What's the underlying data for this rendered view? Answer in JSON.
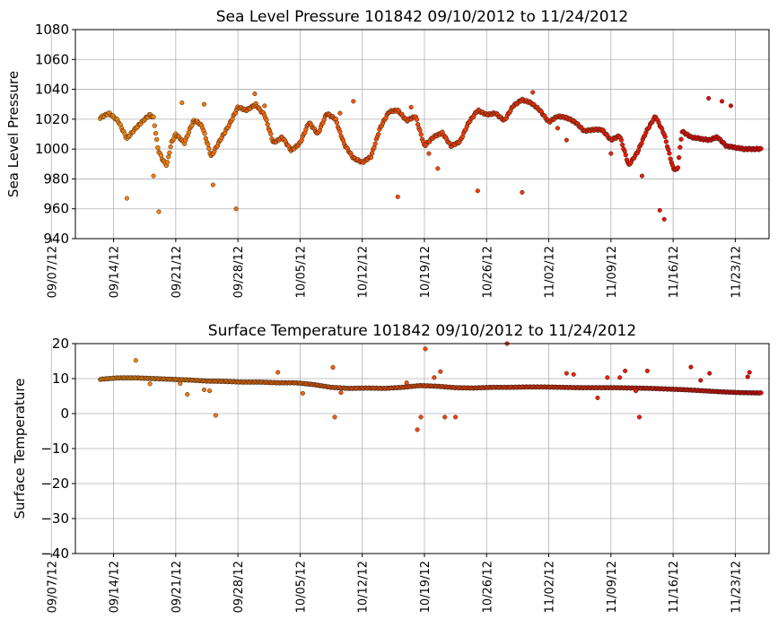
{
  "chart_data": [
    {
      "type": "scatter",
      "title": "Sea Level Pressure 101842  09/10/2012 to 11/24/2012",
      "xlabel": "",
      "ylabel": "Sea Level Pressure",
      "ylim": [
        940,
        1080
      ],
      "yticks": [
        940,
        960,
        980,
        1000,
        1020,
        1040,
        1060,
        1080
      ],
      "xlim_days": [
        -0.3,
        77.8
      ],
      "xtick_labels": [
        "09/07/12",
        "09/14/12",
        "09/21/12",
        "09/28/12",
        "10/05/12",
        "10/12/12",
        "10/19/12",
        "10/26/12",
        "11/02/12",
        "11/09/12",
        "11/16/12",
        "11/23/12"
      ],
      "x_start": "09/10/2012",
      "grid": true,
      "color_gradient": [
        "#ff8c00",
        "#ff4500",
        "#e60000"
      ],
      "series": [
        {
          "name": "Sea Level Pressure",
          "x": [
            2.5,
            3.5,
            4.5,
            5.5,
            6.5,
            7.5,
            8.1,
            8.5,
            9,
            9.5,
            10,
            10.5,
            11,
            12,
            12.5,
            13,
            13.5,
            14,
            14.5,
            15,
            16,
            17,
            18,
            19,
            20,
            20.5,
            21,
            22,
            23,
            24,
            25,
            26,
            27,
            28,
            29,
            29.5,
            30,
            31,
            32,
            33,
            34,
            35,
            36,
            37,
            38,
            39,
            40,
            41,
            42,
            43,
            44,
            45,
            46,
            47,
            48,
            49,
            50,
            51,
            52,
            53,
            54,
            55,
            56,
            57,
            58,
            59,
            60,
            61,
            62,
            63,
            64,
            65,
            66,
            67,
            67.5,
            68,
            69,
            70,
            71,
            72,
            73,
            74,
            75,
            76,
            77
          ],
          "y": [
            1021,
            1024,
            1019,
            1007,
            1014,
            1020,
            1023,
            1021,
            1000,
            993,
            989,
            1004,
            1010,
            1004,
            1012,
            1019,
            1018,
            1015,
            1005,
            995,
            1006,
            1016,
            1028,
            1026,
            1030,
            1026,
            1023,
            1004,
            1008,
            999,
            1004,
            1018,
            1010,
            1024,
            1020,
            1011,
            1003,
            994,
            991,
            995,
            1014,
            1025,
            1026,
            1019,
            1022,
            1002,
            1008,
            1011,
            1002,
            1005,
            1018,
            1026,
            1023,
            1024,
            1019,
            1029,
            1033,
            1031,
            1026,
            1018,
            1022,
            1021,
            1018,
            1012,
            1013,
            1013,
            1006,
            1009,
            989,
            998,
            1012,
            1022,
            1010,
            987,
            986,
            1012,
            1008,
            1007,
            1006,
            1008,
            1002,
            1001,
            1000,
            1000,
            1000
          ],
          "outliers_x": [
            5.5,
            8.5,
            9.1,
            11.7,
            14.2,
            15.2,
            17.8,
            19.9,
            21,
            29.5,
            31,
            36,
            37.5,
            39.5,
            40.5,
            45,
            50,
            51.2,
            54,
            55,
            60,
            63.5,
            65.5,
            66,
            71,
            72.5,
            73.5
          ],
          "outliers_y": [
            967,
            982,
            958,
            1031,
            1030,
            976,
            960,
            1037,
            1029,
            1024,
            1032,
            968,
            1028,
            997,
            987,
            972,
            971,
            1038,
            1014,
            1006,
            997,
            982,
            959,
            953,
            1034,
            1032,
            1029
          ]
        }
      ]
    },
    {
      "type": "scatter",
      "title": "Surface Temperature 101842  09/10/2012 to 11/24/2012",
      "xlabel": "",
      "ylabel": "Surface Temperature",
      "ylim": [
        -40,
        20
      ],
      "yticks": [
        -40,
        -30,
        -20,
        -10,
        0,
        10,
        20
      ],
      "xlim_days": [
        -0.3,
        77.8
      ],
      "xtick_labels": [
        "09/07/12",
        "09/14/12",
        "09/21/12",
        "09/28/12",
        "10/05/12",
        "10/12/12",
        "10/19/12",
        "10/26/12",
        "11/02/12",
        "11/09/12",
        "11/16/12",
        "11/23/12"
      ],
      "x_start": "09/10/2012",
      "grid": true,
      "color_gradient": [
        "#ff8c00",
        "#ff4500",
        "#e60000"
      ],
      "series": [
        {
          "name": "Surface Temperature",
          "x": [
            2.5,
            4.5,
            6.5,
            8.5,
            10.5,
            12.5,
            14.5,
            16.5,
            18.5,
            20.5,
            22.5,
            24.5,
            26.5,
            28.5,
            30.5,
            32.5,
            34.5,
            36.5,
            38.5,
            40.5,
            42.5,
            44.5,
            46.5,
            48.5,
            50.5,
            52.5,
            54.5,
            56.5,
            58.5,
            60.5,
            62.5,
            64.5,
            66.5,
            68.5,
            70.5,
            72.5,
            74.5,
            76.5,
            77
          ],
          "y": [
            9.8,
            10.2,
            10.2,
            10.0,
            9.8,
            9.6,
            9.3,
            9.2,
            9.0,
            9.0,
            8.8,
            8.8,
            8.3,
            7.5,
            7.2,
            7.3,
            7.2,
            7.5,
            8.0,
            7.8,
            7.4,
            7.3,
            7.5,
            7.5,
            7.6,
            7.6,
            7.5,
            7.4,
            7.4,
            7.4,
            7.3,
            7.2,
            7.0,
            6.8,
            6.5,
            6.2,
            6.0,
            5.9,
            5.9
          ],
          "outliers_x": [
            6.5,
            8.1,
            11.5,
            12.3,
            14.2,
            14.8,
            15.5,
            22.5,
            25.3,
            28.7,
            28.9,
            29.6,
            37,
            38.2,
            38.6,
            39.1,
            40.1,
            40.8,
            41.3,
            42.5,
            48.3,
            55,
            55.8,
            58.5,
            59.6,
            61,
            61.6,
            62.8,
            63.2,
            64.1,
            69,
            70.1,
            71.1,
            75.4,
            75.6
          ],
          "outliers_y": [
            15.2,
            8.5,
            8.6,
            5.5,
            6.8,
            6.5,
            -0.5,
            11.8,
            5.8,
            13.2,
            -1.0,
            6.0,
            8.8,
            -4.6,
            -1.0,
            18.5,
            10.3,
            12.0,
            -1.0,
            -1.0,
            20.0,
            11.5,
            11.2,
            4.5,
            10.3,
            10.3,
            12.2,
            6.5,
            -1.0,
            12.2,
            13.3,
            9.5,
            11.5,
            10.5,
            11.8
          ]
        }
      ]
    }
  ]
}
